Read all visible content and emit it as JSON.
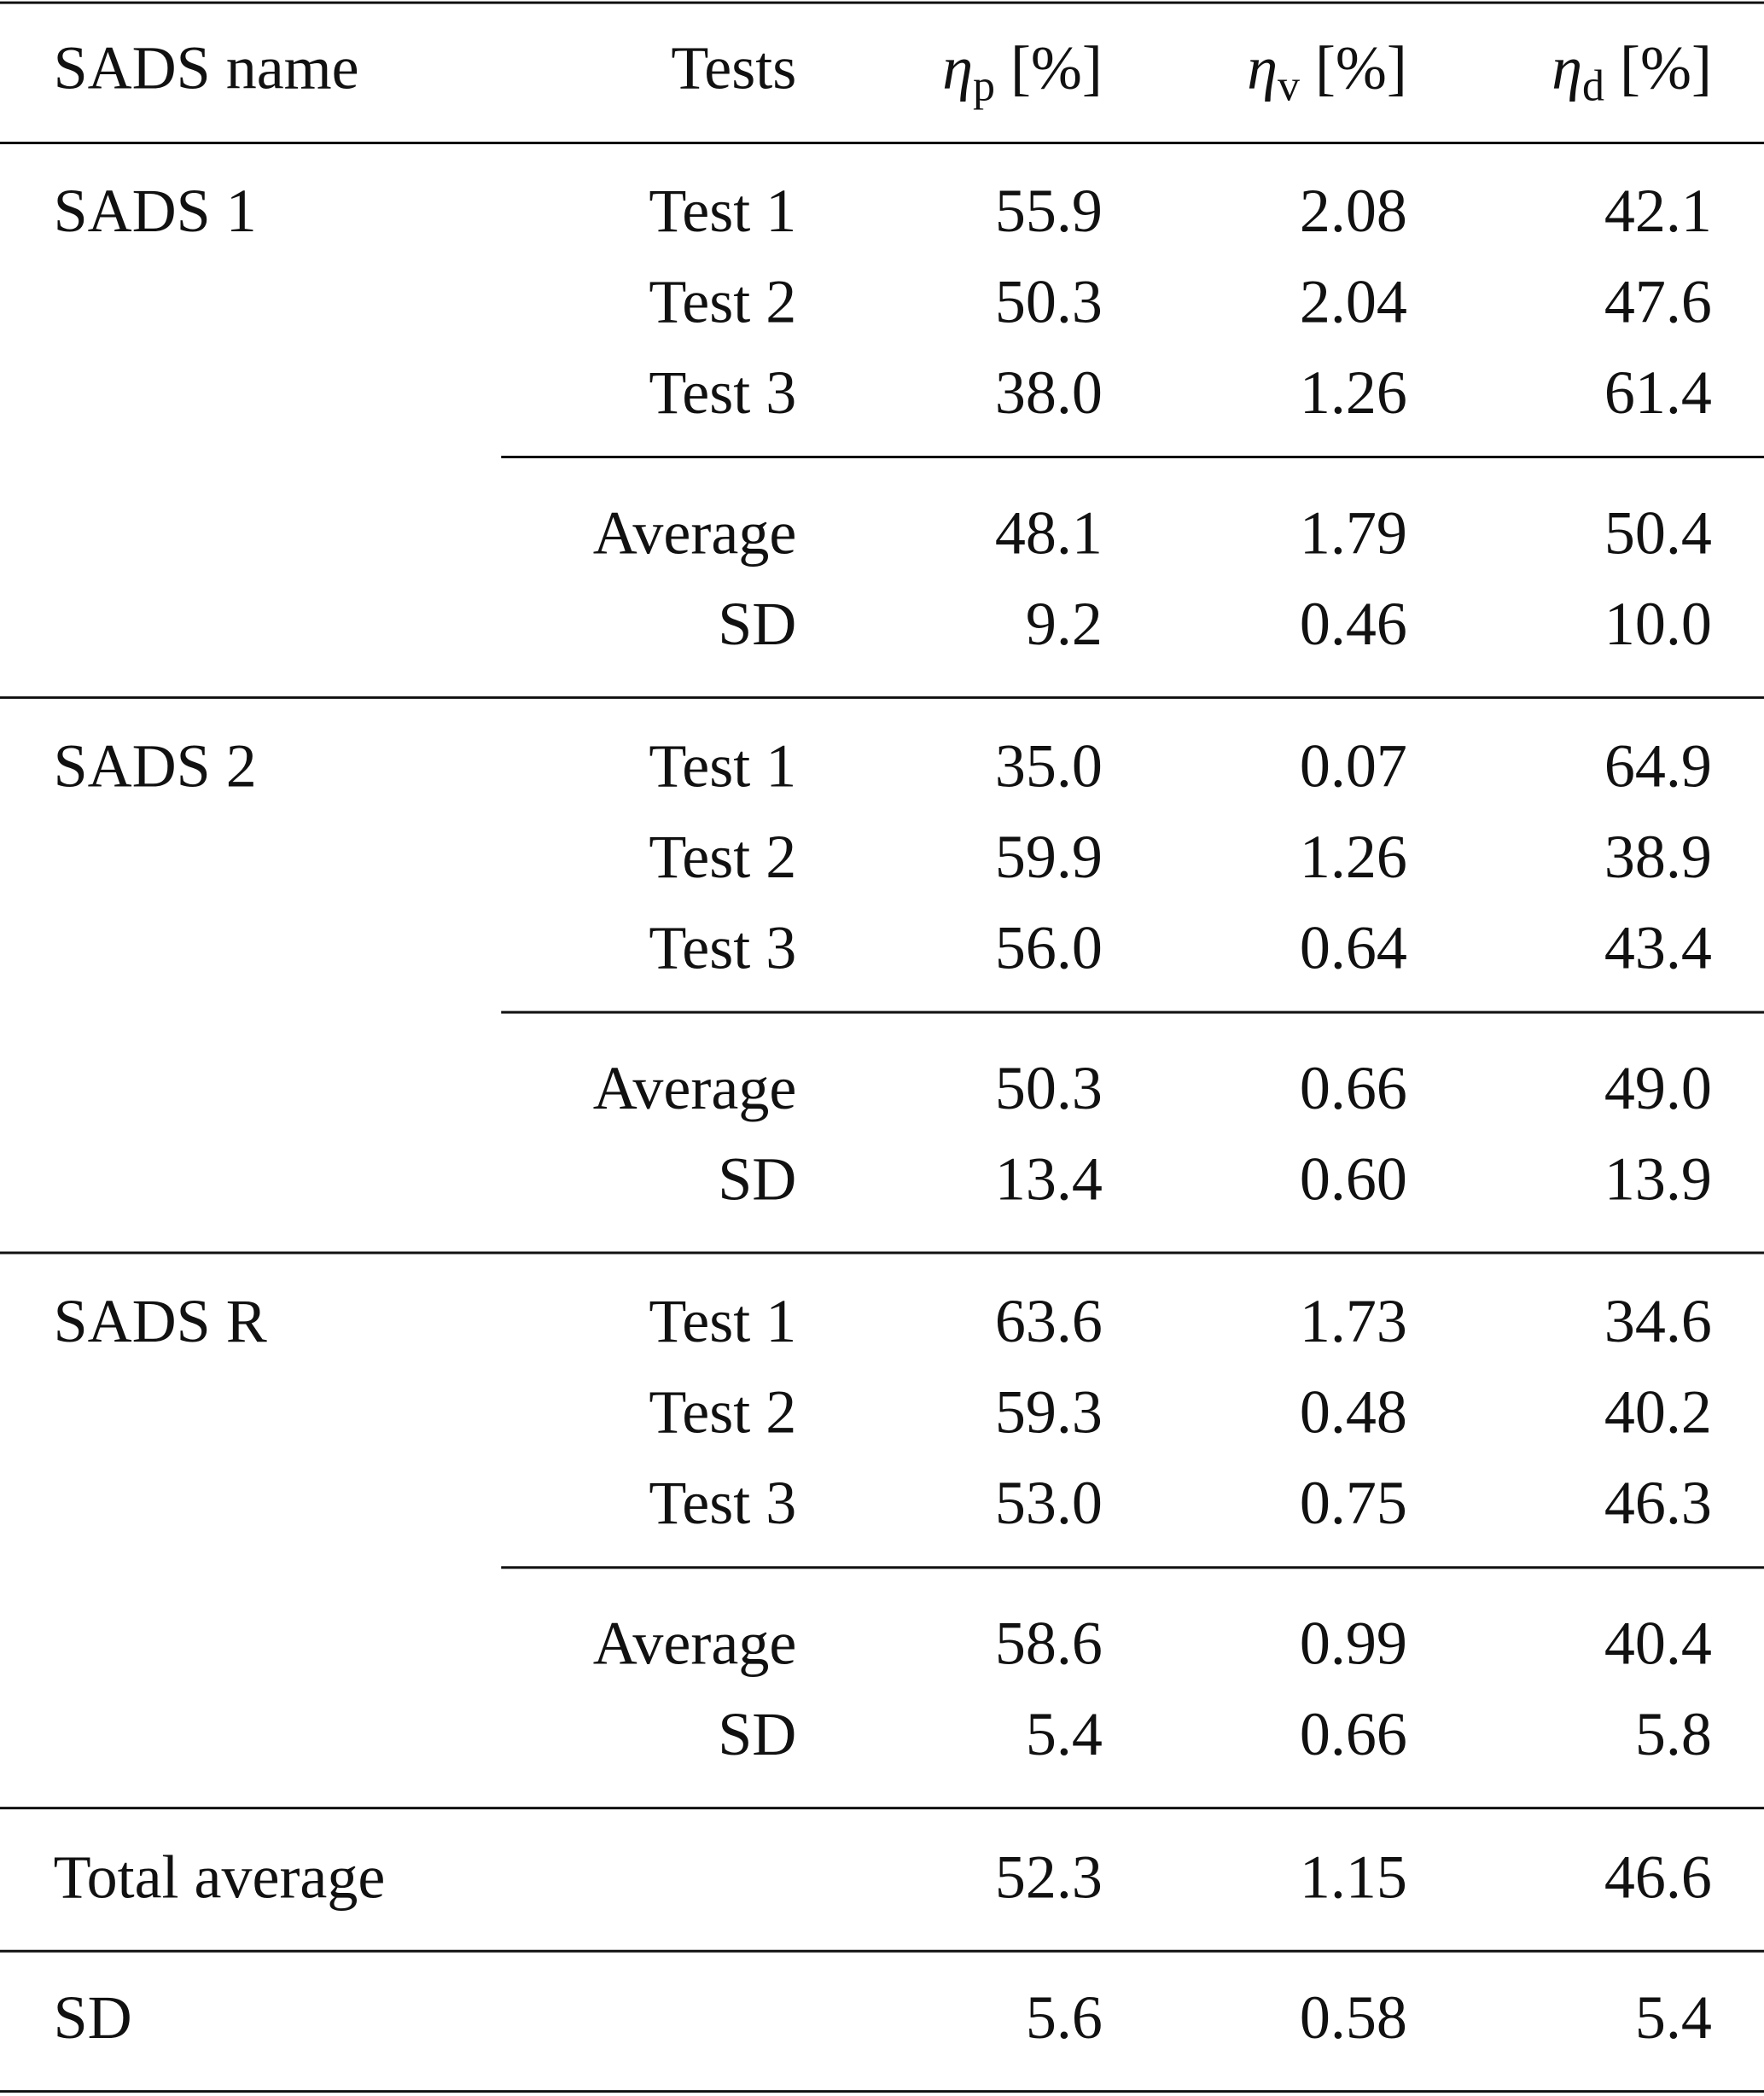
{
  "table": {
    "header": {
      "name": "SADS name",
      "tests": "Tests",
      "columns": [
        {
          "symbol": "η",
          "subscript": "p",
          "unit": "[%]"
        },
        {
          "symbol": "η",
          "subscript": "v",
          "unit": "[%]"
        },
        {
          "symbol": "η",
          "subscript": "d",
          "unit": "[%]"
        }
      ]
    },
    "groups": [
      {
        "name": "SADS 1",
        "tests": [
          {
            "label": "Test 1",
            "values": [
              "55.9",
              "2.08",
              "42.1"
            ]
          },
          {
            "label": "Test 2",
            "values": [
              "50.3",
              "2.04",
              "47.6"
            ]
          },
          {
            "label": "Test 3",
            "values": [
              "38.0",
              "1.26",
              "61.4"
            ]
          }
        ],
        "summary": [
          {
            "label": "Average",
            "values": [
              "48.1",
              "1.79",
              "50.4"
            ]
          },
          {
            "label": "SD",
            "values": [
              "9.2",
              "0.46",
              "10.0"
            ]
          }
        ]
      },
      {
        "name": "SADS 2",
        "tests": [
          {
            "label": "Test 1",
            "values": [
              "35.0",
              "0.07",
              "64.9"
            ]
          },
          {
            "label": "Test 2",
            "values": [
              "59.9",
              "1.26",
              "38.9"
            ]
          },
          {
            "label": "Test 3",
            "values": [
              "56.0",
              "0.64",
              "43.4"
            ]
          }
        ],
        "summary": [
          {
            "label": "Average",
            "values": [
              "50.3",
              "0.66",
              "49.0"
            ]
          },
          {
            "label": "SD",
            "values": [
              "13.4",
              "0.60",
              "13.9"
            ]
          }
        ]
      },
      {
        "name": "SADS R",
        "tests": [
          {
            "label": "Test 1",
            "values": [
              "63.6",
              "1.73",
              "34.6"
            ]
          },
          {
            "label": "Test 2",
            "values": [
              "59.3",
              "0.48",
              "40.2"
            ]
          },
          {
            "label": "Test 3",
            "values": [
              "53.0",
              "0.75",
              "46.3"
            ]
          }
        ],
        "summary": [
          {
            "label": "Average",
            "values": [
              "58.6",
              "0.99",
              "40.4"
            ]
          },
          {
            "label": "SD",
            "values": [
              "5.4",
              "0.66",
              "5.8"
            ]
          }
        ]
      }
    ],
    "totals": [
      {
        "label": "Total average",
        "values": [
          "52.3",
          "1.15",
          "46.6"
        ]
      },
      {
        "label": "SD",
        "values": [
          "5.6",
          "0.58",
          "5.4"
        ]
      }
    ]
  }
}
